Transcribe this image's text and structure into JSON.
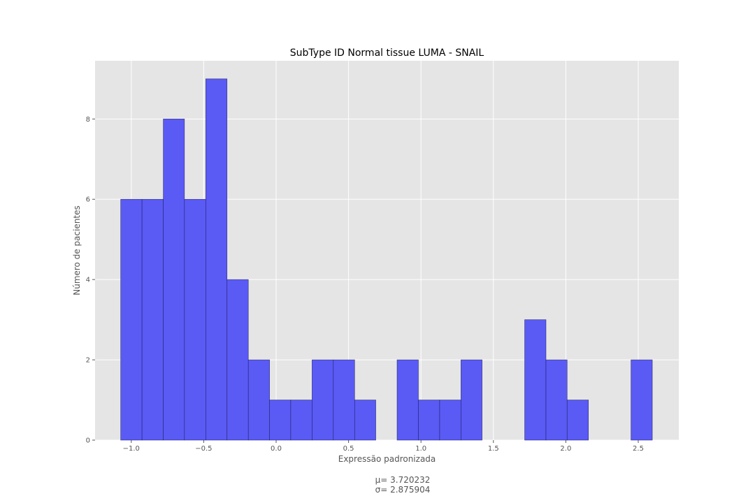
{
  "chart_data": {
    "type": "bar",
    "title": "SubType ID Normal tissue LUMA - SNAIL",
    "xlabel": "Expressão padronizada",
    "ylabel": "Número de pacientes",
    "xlim": [
      -1.25,
      2.78
    ],
    "ylim": [
      0,
      9.45
    ],
    "xticks": [
      -1.0,
      -0.5,
      0.0,
      0.5,
      1.0,
      1.5,
      2.0,
      2.5
    ],
    "xtick_labels": [
      "−1.0",
      "−0.5",
      "0.0",
      "0.5",
      "1.0",
      "1.5",
      "2.0",
      "2.5"
    ],
    "yticks": [
      0,
      2,
      4,
      6,
      8
    ],
    "yticks_labels": [
      "0",
      "2",
      "4",
      "6",
      "8"
    ],
    "grid": true,
    "bins": [
      {
        "x0": -1.073,
        "x1": -0.926,
        "count": 6
      },
      {
        "x0": -0.926,
        "x1": -0.779,
        "count": 6
      },
      {
        "x0": -0.779,
        "x1": -0.633,
        "count": 8
      },
      {
        "x0": -0.633,
        "x1": -0.486,
        "count": 6
      },
      {
        "x0": -0.486,
        "x1": -0.339,
        "count": 9
      },
      {
        "x0": -0.339,
        "x1": -0.192,
        "count": 4
      },
      {
        "x0": -0.192,
        "x1": -0.045,
        "count": 2
      },
      {
        "x0": -0.045,
        "x1": 0.101,
        "count": 1
      },
      {
        "x0": 0.101,
        "x1": 0.248,
        "count": 1
      },
      {
        "x0": 0.248,
        "x1": 0.395,
        "count": 2
      },
      {
        "x0": 0.395,
        "x1": 0.542,
        "count": 2
      },
      {
        "x0": 0.542,
        "x1": 0.688,
        "count": 1
      },
      {
        "x0": 0.688,
        "x1": 0.835,
        "count": 0
      },
      {
        "x0": 0.835,
        "x1": 0.982,
        "count": 2
      },
      {
        "x0": 0.982,
        "x1": 1.129,
        "count": 1
      },
      {
        "x0": 1.129,
        "x1": 1.276,
        "count": 1
      },
      {
        "x0": 1.276,
        "x1": 1.422,
        "count": 2
      },
      {
        "x0": 1.422,
        "x1": 1.569,
        "count": 0
      },
      {
        "x0": 1.569,
        "x1": 1.716,
        "count": 0
      },
      {
        "x0": 1.716,
        "x1": 1.863,
        "count": 3
      },
      {
        "x0": 1.863,
        "x1": 2.009,
        "count": 2
      },
      {
        "x0": 2.009,
        "x1": 2.156,
        "count": 1
      },
      {
        "x0": 2.156,
        "x1": 2.303,
        "count": 0
      },
      {
        "x0": 2.303,
        "x1": 2.45,
        "count": 0
      },
      {
        "x0": 2.45,
        "x1": 2.597,
        "count": 2
      }
    ],
    "stats": {
      "mu": "μ= 3.720232",
      "sigma": "σ= 2.875904"
    },
    "colors": {
      "bar_fill": "#5a5af5",
      "bar_edge": "#1a1a55",
      "background": "#e5e5e5",
      "grid": "#ffffff"
    }
  }
}
